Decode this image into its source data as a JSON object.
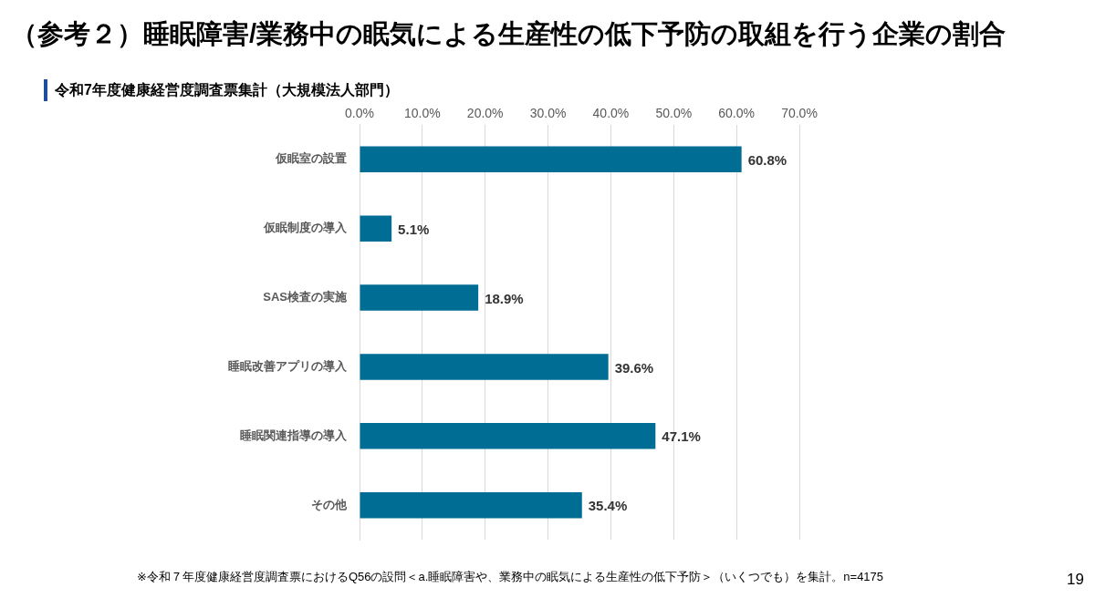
{
  "chart_data": {
    "type": "bar",
    "orientation": "horizontal",
    "title": "（参考２）睡眠障害/業務中の眠気による生産性の低下予防の取組を行う企業の割合",
    "subtitle": "令和7年度健康経営度調査票集計（大規模法人部門）",
    "categories": [
      "仮眠室の設置",
      "仮眠制度の導入",
      "SAS検査の実施",
      "睡眠改善アプリの導入",
      "睡眠関連指導の導入",
      "その他"
    ],
    "values": [
      60.8,
      5.1,
      18.9,
      39.6,
      47.1,
      35.4
    ],
    "value_labels": [
      "60.8%",
      "5.1%",
      "18.9%",
      "39.6%",
      "47.1%",
      "35.4%"
    ],
    "color": "#006d95",
    "xlim": [
      0,
      70
    ],
    "xticks": [
      {
        "value": 0,
        "label": "0.0%"
      },
      {
        "value": 10,
        "label": "10.0%"
      },
      {
        "value": 20,
        "label": "20.0%"
      },
      {
        "value": 30,
        "label": "30.0%"
      },
      {
        "value": 40,
        "label": "40.0%"
      },
      {
        "value": 50,
        "label": "50.0%"
      },
      {
        "value": 60,
        "label": "60.0%"
      },
      {
        "value": 70,
        "label": "70.0%"
      }
    ],
    "grid": "x",
    "annotations": [
      "※令和７年度健康経営度調査票におけるQ56の設問＜a.睡眠障害や、業務中の眠気による生産性の低下予防＞（いくつでも）を集計。n=4175",
      "19"
    ]
  }
}
